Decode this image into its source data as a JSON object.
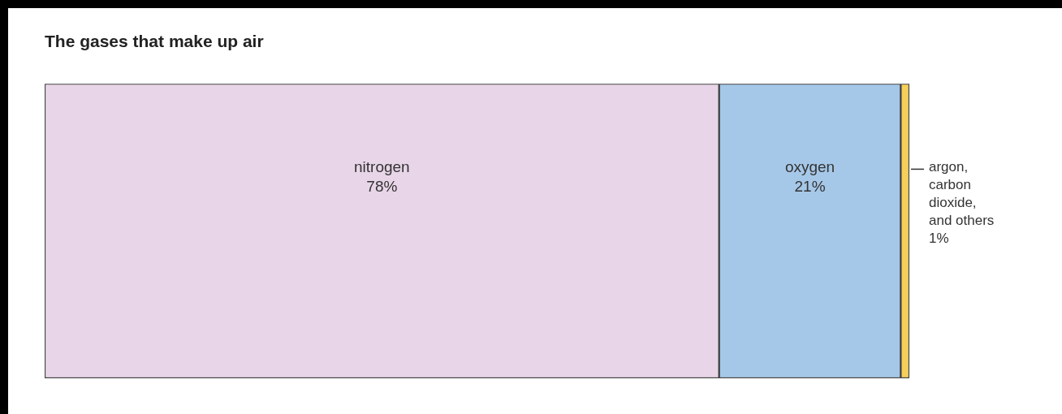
{
  "chart_data": {
    "type": "bar",
    "orientation": "horizontal",
    "stacked": true,
    "title": "The gases that make up air",
    "categories": [
      null
    ],
    "series": [
      {
        "name": "nitrogen",
        "color": "#e8d6e8",
        "values": [
          78
        ],
        "value_labels": [
          "78%"
        ]
      },
      {
        "name": "oxygen",
        "color": "#a6c8e8",
        "values": [
          21
        ],
        "value_labels": [
          "21%"
        ]
      },
      {
        "name": "argon, carbon dioxide, and others",
        "color": "#f6cf5a",
        "values": [
          1
        ],
        "value_labels": [
          "1%"
        ]
      }
    ],
    "legend": false
  }
}
